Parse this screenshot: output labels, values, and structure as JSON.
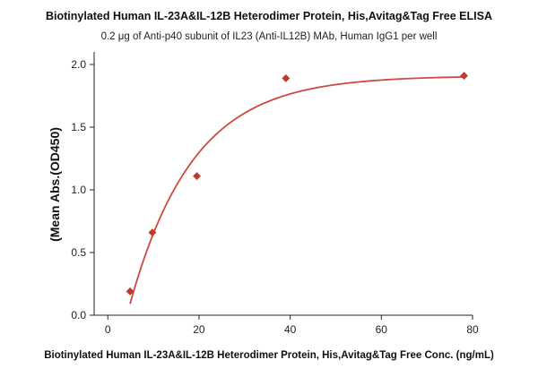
{
  "chart_data": {
    "type": "scatter",
    "title": "Biotinylated Human IL-23A&IL-12B Heterodimer Protein, His,Avitag&Tag Free ELISA",
    "subtitle": "0.2 μg of Anti-p40 subunit of IL23 (Anti-IL12B) MAb, Human IgG1 per well",
    "xlabel": "Biotinylated Human IL-23A&IL-12B Heterodimer Protein, His,Avitag&Tag Free Conc. (ng/mL)",
    "ylabel": "(Mean Abs.(OD450)",
    "xlim": [
      -3,
      80
    ],
    "ylim": [
      0,
      2.1
    ],
    "xticks": [
      0,
      20,
      40,
      60,
      80
    ],
    "yticks": [
      0.0,
      0.5,
      1.0,
      1.5,
      2.0
    ],
    "xtick_labels": [
      "0",
      "20",
      "40",
      "60",
      "80"
    ],
    "ytick_labels": [
      "0.0",
      "0.5",
      "1.0",
      "1.5",
      "2.0"
    ],
    "grid": false,
    "legend": "none",
    "series": [
      {
        "marker": "diamond",
        "color": "#c0392b",
        "x": [
          4.88,
          9.77,
          19.53,
          39.06,
          78.13
        ],
        "y": [
          0.19,
          0.66,
          1.11,
          1.89,
          1.91
        ],
        "fit_curve": {
          "model": "one-site saturation",
          "color": "#cc4a41",
          "y_max": 1.91,
          "k": 0.072,
          "x0": 4.2
        }
      }
    ]
  }
}
